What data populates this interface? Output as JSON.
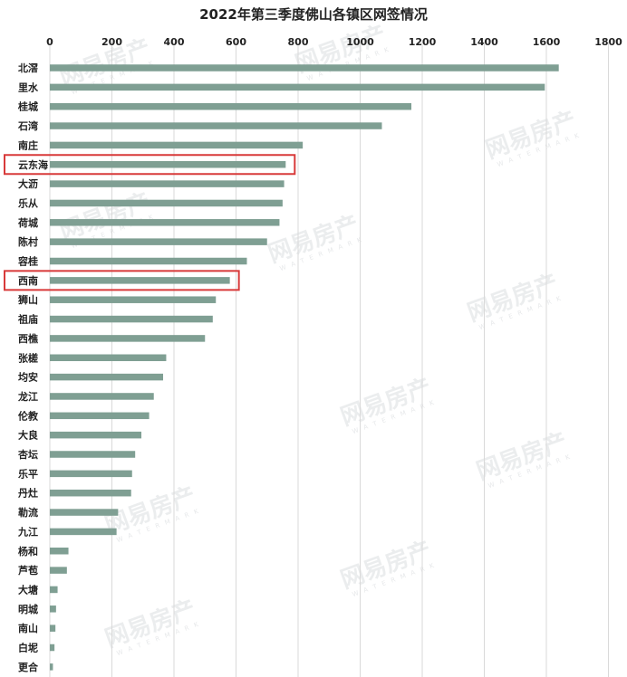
{
  "chart_data": {
    "type": "bar",
    "orientation": "horizontal",
    "title": "2022年第三季度佛山各镇区网签情况",
    "xlabel": "",
    "ylabel": "",
    "xlim": [
      0,
      1800
    ],
    "xticks": [
      0,
      200,
      400,
      600,
      800,
      1000,
      1200,
      1400,
      1600,
      1800
    ],
    "x_axis_position": "top",
    "grid": true,
    "bar_color": "#7f9f93",
    "highlight_color": "#d83a3a",
    "highlighted": [
      "云东海",
      "西南"
    ],
    "categories": [
      "北滘",
      "里水",
      "桂城",
      "石湾",
      "南庄",
      "云东海",
      "大沥",
      "乐从",
      "荷城",
      "陈村",
      "容桂",
      "西南",
      "狮山",
      "祖庙",
      "西樵",
      "张槎",
      "均安",
      "龙江",
      "伦教",
      "大良",
      "杏坛",
      "乐平",
      "丹灶",
      "勒流",
      "九江",
      "杨和",
      "芦苞",
      "大塘",
      "明城",
      "南山",
      "白坭",
      "更合"
    ],
    "values": [
      1640,
      1595,
      1165,
      1070,
      815,
      760,
      755,
      750,
      740,
      700,
      635,
      580,
      535,
      525,
      500,
      375,
      365,
      335,
      320,
      295,
      275,
      265,
      262,
      220,
      215,
      60,
      55,
      25,
      20,
      18,
      15,
      10
    ]
  },
  "watermark": {
    "text": "网易房产",
    "sub": "W A T E R M A R K"
  }
}
